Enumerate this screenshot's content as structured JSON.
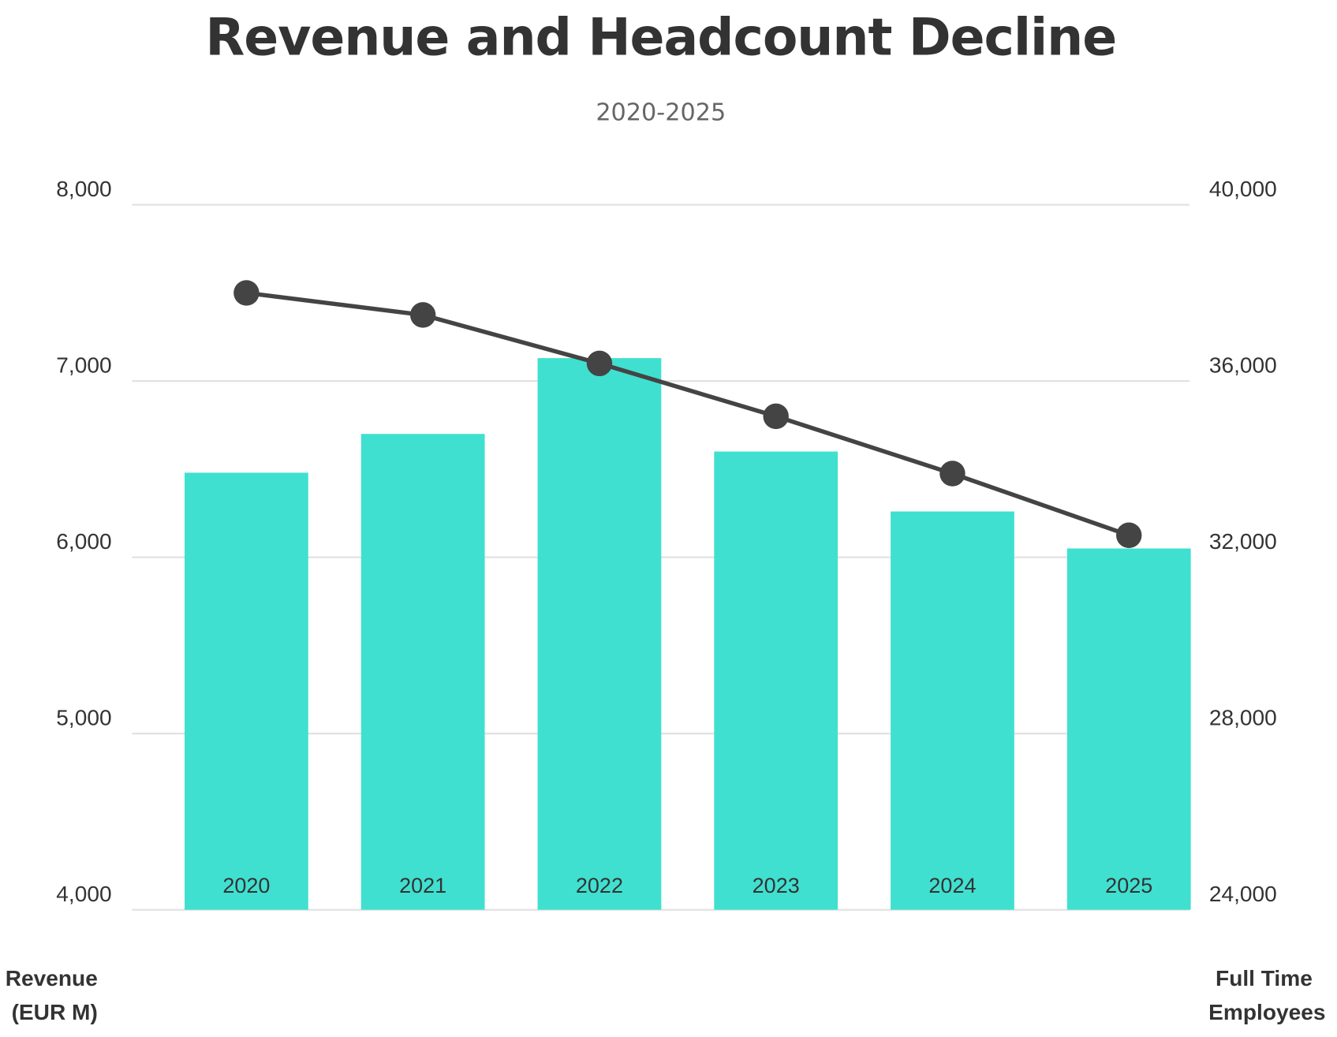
{
  "chart_data": {
    "type": "bar+line",
    "title": "Revenue and Headcount Decline",
    "subtitle": "2020-2025",
    "categories": [
      "2020",
      "2021",
      "2022",
      "2023",
      "2024",
      "2025"
    ],
    "series": [
      {
        "name": "Revenue (EUR M)",
        "type": "bar",
        "axis": "left",
        "color": "#40E0D0",
        "values": [
          6480,
          6700,
          7130,
          6600,
          6260,
          6050
        ]
      },
      {
        "name": "Full Time Employees",
        "type": "line",
        "axis": "right",
        "color": "#444444",
        "values": [
          38000,
          37500,
          36400,
          35200,
          33900,
          32500
        ]
      }
    ],
    "y_left": {
      "label_lines": [
        "Revenue",
        "(EUR M)"
      ],
      "range": [
        4000,
        8000
      ],
      "ticks": [
        "4,000",
        "5,000",
        "6,000",
        "7,000",
        "8,000"
      ],
      "tick_values": [
        4000,
        5000,
        6000,
        7000,
        8000
      ]
    },
    "y_right": {
      "label_lines": [
        "Full Time",
        "Employees"
      ],
      "range": [
        24000,
        40000
      ],
      "ticks": [
        "24,000",
        "28,000",
        "32,000",
        "36,000",
        "40,000"
      ],
      "tick_values": [
        24000,
        28000,
        32000,
        36000,
        40000
      ]
    },
    "grid": true,
    "legend": "none"
  }
}
